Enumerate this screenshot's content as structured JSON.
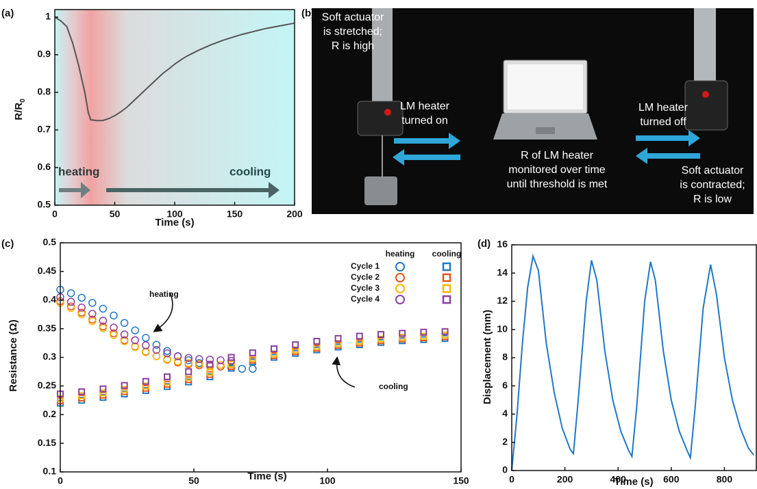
{
  "chart_data": [
    {
      "panel": "(a)",
      "type": "line",
      "x_label": "Time (s)",
      "y_label": "R/R",
      "y_label_sub": "0",
      "color": "#555555",
      "x": [
        0,
        5,
        10,
        15,
        20,
        25,
        28,
        30,
        35,
        40,
        45,
        50,
        55,
        60,
        65,
        70,
        75,
        80,
        85,
        90,
        95,
        100,
        105,
        110,
        115,
        120,
        125,
        130,
        135,
        140,
        145,
        150,
        155,
        160,
        165,
        170,
        175,
        180,
        185,
        190,
        195,
        200
      ],
      "values": [
        1.0,
        0.99,
        0.975,
        0.93,
        0.87,
        0.8,
        0.745,
        0.727,
        0.725,
        0.725,
        0.73,
        0.738,
        0.748,
        0.76,
        0.775,
        0.79,
        0.805,
        0.82,
        0.835,
        0.85,
        0.862,
        0.875,
        0.886,
        0.896,
        0.904,
        0.912,
        0.919,
        0.926,
        0.932,
        0.938,
        0.943,
        0.948,
        0.953,
        0.957,
        0.961,
        0.965,
        0.969,
        0.972,
        0.975,
        0.978,
        0.981,
        0.984
      ],
      "xlim": [
        0,
        200
      ],
      "xticks": [
        0,
        50,
        100,
        150,
        200
      ],
      "ylim": [
        0.5,
        1.02
      ],
      "yticks": [
        0.5,
        0.6,
        0.7,
        0.8,
        0.9,
        1
      ],
      "annotations": [
        "heating",
        "cooling"
      ]
    },
    {
      "panel": "(c)",
      "type": "scatter",
      "x_label": "Time (s)",
      "y_label": "Resistance (Ω)",
      "legend_headers": [
        "heating",
        "cooling"
      ],
      "xlim": [
        0,
        150
      ],
      "xticks": [
        0,
        50,
        100,
        150
      ],
      "ylim": [
        0.1,
        0.5
      ],
      "yticks": [
        0.1,
        0.15,
        0.2,
        0.25,
        0.3,
        0.35,
        0.4,
        0.45,
        0.5
      ],
      "series": [
        {
          "name": "Cycle 1",
          "color": "#1f77c4",
          "heating": {
            "x": [
              0,
              4,
              8,
              12,
              16,
              20,
              24,
              28,
              32,
              36,
              40,
              44,
              48,
              52,
              56,
              60,
              64,
              68,
              72
            ],
            "values": [
              0.418,
              0.412,
              0.404,
              0.395,
              0.385,
              0.373,
              0.36,
              0.347,
              0.334,
              0.322,
              0.311,
              0.302,
              0.295,
              0.29,
              0.287,
              0.284,
              0.282,
              0.28,
              0.28
            ]
          },
          "cooling": {
            "x": [
              0,
              8,
              16,
              24,
              32,
              40,
              48,
              56,
              64,
              72,
              80,
              88,
              96,
              104,
              112,
              120,
              128,
              136,
              144
            ],
            "values": [
              0.22,
              0.225,
              0.23,
              0.236,
              0.242,
              0.249,
              0.257,
              0.266,
              0.281,
              0.292,
              0.3,
              0.307,
              0.313,
              0.318,
              0.322,
              0.326,
              0.329,
              0.331,
              0.333
            ]
          }
        },
        {
          "name": "Cycle 2",
          "color": "#e8541a",
          "heating": {
            "x": [
              0,
              4,
              8,
              12,
              16,
              20,
              24,
              28,
              32,
              36,
              40,
              44,
              48,
              52,
              56,
              60
            ],
            "values": [
              0.398,
              0.389,
              0.378,
              0.366,
              0.354,
              0.342,
              0.33,
              0.319,
              0.31,
              0.302,
              0.296,
              0.291,
              0.288,
              0.286,
              0.285,
              0.284
            ]
          },
          "cooling": {
            "x": [
              0,
              8,
              16,
              24,
              32,
              40,
              48,
              56,
              64,
              72,
              80,
              88,
              96,
              104,
              112,
              120,
              128,
              136,
              144
            ],
            "values": [
              0.224,
              0.229,
              0.234,
              0.24,
              0.246,
              0.253,
              0.261,
              0.27,
              0.284,
              0.295,
              0.303,
              0.31,
              0.316,
              0.321,
              0.325,
              0.329,
              0.332,
              0.334,
              0.336
            ]
          }
        },
        {
          "name": "Cycle 3",
          "color": "#f5b700",
          "heating": {
            "x": [
              0,
              4,
              8,
              12,
              16,
              20,
              24,
              28,
              32,
              36,
              40,
              44,
              48,
              52,
              56,
              60,
              64
            ],
            "values": [
              0.395,
              0.386,
              0.375,
              0.363,
              0.351,
              0.339,
              0.328,
              0.318,
              0.309,
              0.302,
              0.297,
              0.293,
              0.29,
              0.288,
              0.287,
              0.287,
              0.288
            ]
          },
          "cooling": {
            "x": [
              0,
              8,
              16,
              24,
              32,
              40,
              48,
              56,
              64,
              72,
              80,
              88,
              96,
              104,
              112,
              120,
              128,
              136,
              144
            ],
            "values": [
              0.228,
              0.233,
              0.238,
              0.244,
              0.25,
              0.257,
              0.265,
              0.274,
              0.288,
              0.298,
              0.306,
              0.313,
              0.319,
              0.324,
              0.328,
              0.332,
              0.335,
              0.337,
              0.339
            ]
          }
        },
        {
          "name": "Cycle 4",
          "color": "#8b3fa0",
          "heating": {
            "x": [
              0,
              4,
              8,
              12,
              16,
              20,
              24,
              28,
              32,
              36,
              40,
              44,
              48,
              52,
              56,
              60,
              64
            ],
            "values": [
              0.405,
              0.397,
              0.387,
              0.376,
              0.364,
              0.352,
              0.34,
              0.33,
              0.321,
              0.313,
              0.307,
              0.302,
              0.299,
              0.297,
              0.296,
              0.295,
              0.294
            ]
          },
          "cooling": {
            "x": [
              0,
              8,
              16,
              24,
              32,
              40,
              48,
              56,
              64,
              72,
              80,
              88,
              96,
              104,
              112,
              120,
              128,
              136,
              144
            ],
            "values": [
              0.236,
              0.24,
              0.245,
              0.251,
              0.258,
              0.266,
              0.275,
              0.288,
              0.3,
              0.308,
              0.315,
              0.322,
              0.328,
              0.333,
              0.337,
              0.34,
              0.342,
              0.344,
              0.345
            ]
          }
        }
      ],
      "annotations": [
        "heating",
        "cooling"
      ]
    },
    {
      "panel": "(d)",
      "type": "line",
      "x_label": "Time (s)",
      "y_label": "Displacement (mm)",
      "color": "#1f77c4",
      "x": [
        0,
        20,
        40,
        60,
        80,
        100,
        130,
        160,
        190,
        220,
        232,
        250,
        280,
        300,
        320,
        350,
        380,
        410,
        440,
        452,
        470,
        500,
        522,
        540,
        570,
        600,
        630,
        660,
        672,
        690,
        720,
        748,
        770,
        800,
        830,
        860,
        890,
        910
      ],
      "values": [
        0,
        4,
        9,
        13,
        15.2,
        14.2,
        9,
        5.5,
        3,
        1.5,
        1.2,
        5,
        12,
        14.9,
        13.5,
        8.5,
        5,
        2.8,
        1.4,
        1.0,
        4.5,
        12,
        14.8,
        13.5,
        8.5,
        5,
        2.8,
        1.4,
        0.9,
        4.5,
        11.5,
        14.6,
        12.5,
        8,
        5,
        3,
        1.6,
        1.1
      ],
      "xlim": [
        0,
        920
      ],
      "xticks": [
        0,
        200,
        400,
        600,
        800
      ],
      "ylim": [
        0,
        16
      ],
      "yticks": [
        0,
        2,
        4,
        6,
        8,
        10,
        12,
        14,
        16
      ]
    }
  ],
  "panel_b": {
    "panel": "(b)",
    "left_top": [
      "Soft actuator",
      "is stretched;",
      "R is high"
    ],
    "left_arrow": [
      "LM heater",
      "turned on"
    ],
    "center": [
      "R of LM heater",
      "monitored over time",
      "until threshold is met"
    ],
    "right_arrow": [
      "LM heater",
      "turned off"
    ],
    "right_bottom": [
      "Soft actuator",
      "is contracted;",
      "R is low"
    ]
  }
}
